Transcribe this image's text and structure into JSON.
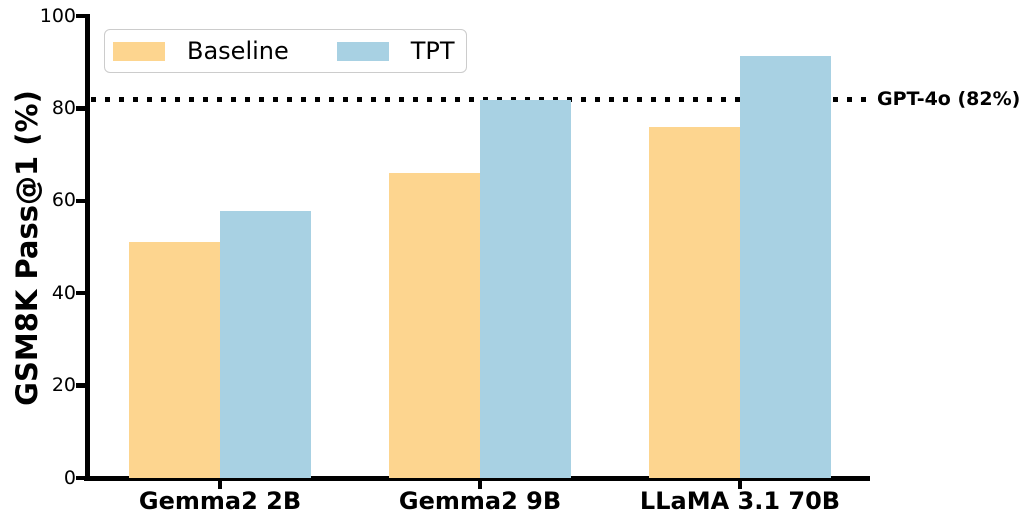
{
  "figure": {
    "background": "#ffffff",
    "axis_color": "#000000",
    "legend_border_color": "#cccccc"
  },
  "chart_data": {
    "type": "bar",
    "title": "",
    "xlabel": "",
    "ylabel": "GSM8K Pass@1 (%)",
    "categories": [
      "Gemma2 2B",
      "Gemma2 9B",
      "LLaMA 3.1 70B"
    ],
    "series": [
      {
        "name": "Baseline",
        "color": "#FDD58F",
        "values": [
          51,
          66,
          76
        ]
      },
      {
        "name": "TPT",
        "color": "#A8D1E3",
        "values": [
          57.7,
          81.8,
          91.3
        ]
      }
    ],
    "ylim": [
      0,
      100
    ],
    "yticks": [
      0,
      20,
      40,
      60,
      80,
      100
    ],
    "grid": false,
    "legend": {
      "position": "upper-left",
      "entries": [
        "Baseline",
        "TPT"
      ]
    },
    "reference_line": {
      "value": 82,
      "label": "GPT-4o (82%)",
      "style": "dotted",
      "color": "#000000"
    }
  }
}
